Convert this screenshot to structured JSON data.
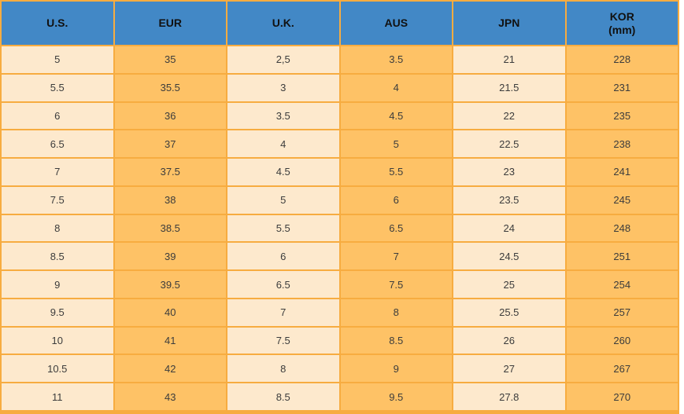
{
  "colors": {
    "header_bg": "#4288C6",
    "header_text": "#111111",
    "cell_cream": "#FDE9CD",
    "cell_orange": "#FEC266",
    "border": "#F7AC40",
    "body_text": "#3C3C3C",
    "page_bg": "#FFFFFF"
  },
  "chart_data": {
    "type": "table",
    "columns": [
      {
        "label": "U.S."
      },
      {
        "label": "EUR"
      },
      {
        "label": "U.K."
      },
      {
        "label": "AUS"
      },
      {
        "label": "JPN"
      },
      {
        "label": "KOR",
        "sublabel": "(mm)"
      }
    ],
    "rows": [
      [
        "5",
        "35",
        "2,5",
        "3.5",
        "21",
        "228"
      ],
      [
        "5.5",
        "35.5",
        "3",
        "4",
        "21.5",
        "231"
      ],
      [
        "6",
        "36",
        "3.5",
        "4.5",
        "22",
        "235"
      ],
      [
        "6.5",
        "37",
        "4",
        "5",
        "22.5",
        "238"
      ],
      [
        "7",
        "37.5",
        "4.5",
        "5.5",
        "23",
        "241"
      ],
      [
        "7.5",
        "38",
        "5",
        "6",
        "23.5",
        "245"
      ],
      [
        "8",
        "38.5",
        "5.5",
        "6.5",
        "24",
        "248"
      ],
      [
        "8.5",
        "39",
        "6",
        "7",
        "24.5",
        "251"
      ],
      [
        "9",
        "39.5",
        "6.5",
        "7.5",
        "25",
        "254"
      ],
      [
        "9.5",
        "40",
        "7",
        "8",
        "25.5",
        "257"
      ],
      [
        "10",
        "41",
        "7.5",
        "8.5",
        "26",
        "260"
      ],
      [
        "10.5",
        "42",
        "8",
        "9",
        "27",
        "267"
      ],
      [
        "11",
        "43",
        "8.5",
        "9.5",
        "27.8",
        "270"
      ]
    ]
  }
}
